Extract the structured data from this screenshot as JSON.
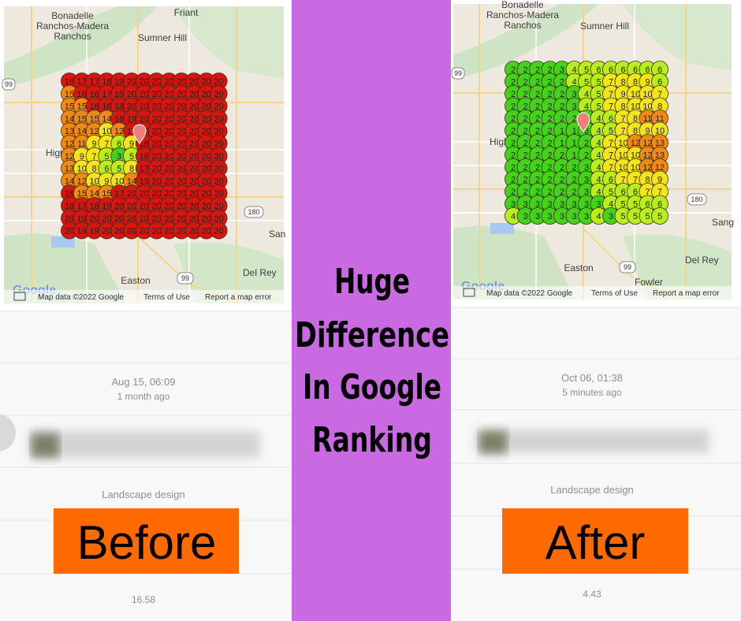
{
  "center": {
    "lines": [
      "Huge",
      "Difference",
      "In Google",
      "Ranking"
    ]
  },
  "rank_colors": [
    {
      "max": 3,
      "color": "#45d21a"
    },
    {
      "max": 6,
      "color": "#b9ee1c"
    },
    {
      "max": 10,
      "color": "#f2e61b"
    },
    {
      "max": 15,
      "color": "#f08a12"
    },
    {
      "max": 20,
      "color": "#d8150f"
    }
  ],
  "left": {
    "map": {
      "places": [
        "Bonadelle",
        "Ranchos-Madera",
        "Ranchos",
        "Friant",
        "Sumner Hill",
        "High",
        "180",
        "99",
        "San",
        "Easton",
        "99",
        "Del Rey"
      ],
      "attribution": [
        "Map data ©2022 Google",
        "Terms of Use",
        "Report a map error"
      ],
      "logo": "Google"
    },
    "grid": [
      [
        16,
        17,
        17,
        18,
        19,
        20,
        20,
        20,
        20,
        20,
        20,
        20,
        20
      ],
      [
        15,
        16,
        16,
        17,
        19,
        20,
        20,
        20,
        20,
        20,
        20,
        20,
        20
      ],
      [
        15,
        15,
        16,
        16,
        18,
        20,
        20,
        20,
        20,
        20,
        20,
        20,
        20
      ],
      [
        14,
        15,
        15,
        14,
        16,
        19,
        20,
        20,
        20,
        20,
        20,
        20,
        20
      ],
      [
        13,
        14,
        12,
        10,
        12,
        17,
        20,
        20,
        20,
        20,
        20,
        20,
        20
      ],
      [
        12,
        11,
        9,
        7,
        6,
        9,
        18,
        20,
        20,
        20,
        20,
        20,
        20
      ],
      [
        12,
        9,
        7,
        5,
        3,
        5,
        16,
        20,
        20,
        20,
        20,
        20,
        20
      ],
      [
        13,
        10,
        8,
        6,
        5,
        8,
        17,
        20,
        20,
        20,
        20,
        20,
        20
      ],
      [
        14,
        12,
        10,
        9,
        10,
        14,
        19,
        20,
        20,
        20,
        20,
        20,
        20
      ],
      [
        16,
        15,
        14,
        15,
        17,
        20,
        20,
        20,
        20,
        20,
        20,
        20,
        20
      ],
      [
        18,
        17,
        18,
        19,
        20,
        20,
        20,
        20,
        20,
        20,
        20,
        20,
        20
      ],
      [
        20,
        19,
        20,
        20,
        20,
        20,
        20,
        20,
        20,
        20,
        20,
        20,
        20
      ],
      [
        20,
        19,
        19,
        20,
        20,
        20,
        20,
        20,
        20,
        20,
        20,
        20,
        20
      ]
    ],
    "date": "Aug 15, 06:09",
    "ago": "1 month ago",
    "category": "Landscape design",
    "score": "16.58",
    "badge": "Before"
  },
  "right": {
    "map": {
      "places": [
        "Bonadelle",
        "Ranchos-Madera",
        "Ranchos",
        "Sumner Hill",
        "High",
        "180",
        "99",
        "Sang",
        "Easton",
        "99",
        "Del Rey",
        "Fowler"
      ],
      "attribution": [
        "Map data ©2022 Google",
        "Terms of Use",
        "Report a map error"
      ],
      "logo": "Google"
    },
    "grid": [
      [
        2,
        2,
        2,
        2,
        3,
        4,
        5,
        6,
        6,
        6,
        6,
        6,
        6
      ],
      [
        2,
        2,
        2,
        2,
        2,
        4,
        5,
        5,
        7,
        8,
        8,
        9,
        6
      ],
      [
        2,
        2,
        2,
        2,
        2,
        3,
        4,
        5,
        7,
        9,
        10,
        10,
        7
      ],
      [
        2,
        2,
        2,
        2,
        2,
        3,
        4,
        5,
        7,
        8,
        10,
        10,
        8
      ],
      [
        2,
        2,
        2,
        2,
        2,
        2,
        3,
        4,
        6,
        7,
        8,
        11,
        11
      ],
      [
        2,
        2,
        2,
        2,
        1,
        1,
        3,
        4,
        5,
        7,
        8,
        9,
        10
      ],
      [
        2,
        2,
        2,
        2,
        1,
        1,
        2,
        4,
        7,
        10,
        12,
        12,
        13
      ],
      [
        2,
        2,
        2,
        2,
        2,
        1,
        2,
        4,
        7,
        10,
        10,
        12,
        13
      ],
      [
        2,
        2,
        2,
        2,
        2,
        2,
        3,
        4,
        7,
        10,
        10,
        12,
        12
      ],
      [
        2,
        2,
        2,
        2,
        2,
        2,
        3,
        4,
        6,
        7,
        7,
        8,
        9
      ],
      [
        2,
        2,
        2,
        2,
        2,
        2,
        3,
        4,
        5,
        6,
        6,
        7,
        7
      ],
      [
        3,
        3,
        3,
        3,
        3,
        3,
        3,
        3,
        4,
        5,
        5,
        6,
        6
      ],
      [
        4,
        3,
        3,
        3,
        3,
        3,
        3,
        4,
        3,
        5,
        5,
        5,
        5
      ]
    ],
    "date": "Oct 06, 01:38",
    "ago": "5 minutes ago",
    "category": "Landscape design",
    "score": "4.43",
    "badge": "After"
  }
}
